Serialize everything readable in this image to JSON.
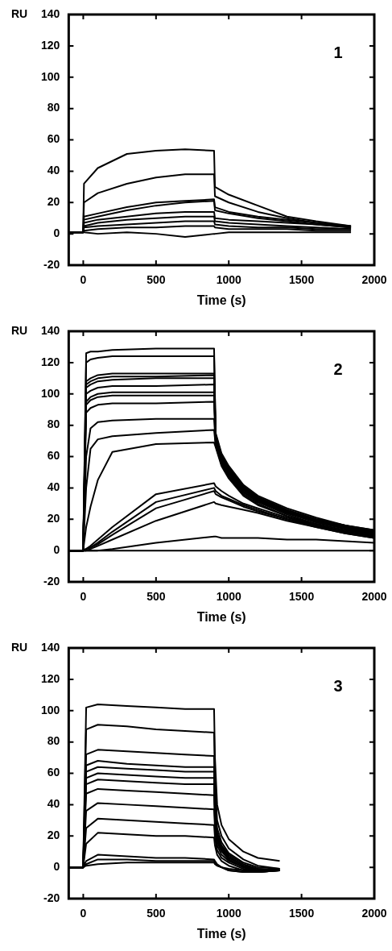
{
  "chart_data": [
    {
      "type": "line",
      "xlabel": "Time (s)",
      "ylabel": "RU",
      "annotations": [
        "1"
      ],
      "marker": "none",
      "xlim": [
        -100,
        2000
      ],
      "xticks": [
        0,
        500,
        1000,
        1500,
        2000
      ],
      "ylim": [
        -20,
        140
      ],
      "yticks": [
        -20,
        0,
        20,
        40,
        60,
        80,
        100,
        120,
        140
      ],
      "x": [
        -100,
        -1,
        5,
        100,
        300,
        500,
        700,
        899,
        905,
        1000,
        1200,
        1400,
        1600,
        1840
      ],
      "series": [
        {
          "color": "#000000",
          "values": [
            1,
            1,
            32,
            42,
            51,
            53,
            54,
            53,
            30,
            25,
            18,
            11,
            8,
            5
          ]
        },
        {
          "color": "#000000",
          "values": [
            1,
            1,
            20,
            26,
            32,
            36,
            38,
            38,
            24,
            20,
            14,
            10,
            7,
            5
          ]
        },
        {
          "color": "#000000",
          "values": [
            1,
            1,
            11,
            13,
            17,
            20,
            21,
            22,
            17,
            14,
            11,
            9,
            7,
            4
          ]
        },
        {
          "color": "#000000",
          "values": [
            1,
            1,
            9,
            11,
            15,
            18,
            20,
            21,
            15,
            13,
            10,
            8,
            6,
            4
          ]
        },
        {
          "color": "#000000",
          "values": [
            1,
            1,
            7,
            9,
            11,
            13,
            14,
            14,
            10,
            9,
            8,
            7,
            6,
            4
          ]
        },
        {
          "color": "#000000",
          "values": [
            1,
            1,
            5,
            7,
            9,
            10,
            11,
            11,
            8,
            7,
            6,
            5,
            4,
            3
          ]
        },
        {
          "color": "#000000",
          "values": [
            1,
            1,
            4,
            5,
            6,
            7,
            8,
            8,
            6,
            5,
            4,
            4,
            3,
            3
          ]
        },
        {
          "color": "#000000",
          "values": [
            1,
            1,
            2,
            3,
            4,
            4,
            5,
            5,
            4,
            3,
            3,
            3,
            2,
            2
          ]
        },
        {
          "color": "#000000",
          "values": [
            1,
            1,
            1,
            0,
            1,
            0,
            -2,
            0,
            0,
            1,
            1,
            1,
            1,
            1
          ]
        }
      ]
    },
    {
      "type": "line",
      "xlabel": "Time (s)",
      "ylabel": "RU",
      "annotations": [
        "2"
      ],
      "marker": "none",
      "xlim": [
        -100,
        2000
      ],
      "xticks": [
        0,
        500,
        1000,
        1500,
        2000
      ],
      "ylim": [
        -20,
        140
      ],
      "yticks": [
        -20,
        0,
        20,
        40,
        60,
        80,
        100,
        120,
        140
      ],
      "x": [
        -100,
        -1,
        20,
        50,
        100,
        200,
        500,
        899,
        910,
        950,
        1000,
        1100,
        1200,
        1400,
        1600,
        1800,
        2000
      ],
      "series": [
        {
          "color": "#000000",
          "values": [
            0,
            0,
            126,
            127,
            127,
            128,
            129,
            129,
            75,
            62,
            54,
            42,
            35,
            27,
            21,
            16,
            13
          ]
        },
        {
          "color": "#000000",
          "values": [
            0,
            0,
            120,
            122,
            123,
            124,
            124,
            124,
            74,
            61,
            53,
            41,
            34,
            26,
            20,
            16,
            13
          ]
        },
        {
          "color": "#000000",
          "values": [
            0,
            0,
            108,
            110,
            112,
            113,
            113,
            113,
            73,
            60,
            52,
            41,
            34,
            26,
            20,
            16,
            12
          ]
        },
        {
          "color": "#000000",
          "values": [
            0,
            0,
            106,
            108,
            110,
            111,
            111,
            112,
            72,
            60,
            52,
            40,
            33,
            25,
            19,
            15,
            12
          ]
        },
        {
          "color": "#000000",
          "values": [
            0,
            0,
            104,
            106,
            108,
            109,
            110,
            110,
            72,
            59,
            51,
            40,
            33,
            25,
            19,
            15,
            12
          ]
        },
        {
          "color": "#000000",
          "values": [
            0,
            0,
            100,
            102,
            104,
            105,
            105,
            106,
            71,
            59,
            51,
            40,
            33,
            25,
            19,
            15,
            11
          ]
        },
        {
          "color": "#000000",
          "values": [
            0,
            0,
            95,
            98,
            100,
            101,
            101,
            101,
            70,
            58,
            50,
            39,
            32,
            24,
            19,
            15,
            11
          ]
        },
        {
          "color": "#000000",
          "values": [
            0,
            0,
            93,
            96,
            98,
            99,
            99,
            99,
            70,
            58,
            50,
            39,
            32,
            24,
            18,
            14,
            11
          ]
        },
        {
          "color": "#000000",
          "values": [
            0,
            0,
            88,
            91,
            93,
            94,
            94,
            95,
            69,
            57,
            49,
            38,
            31,
            24,
            18,
            14,
            10
          ]
        },
        {
          "color": "#000000",
          "values": [
            0,
            0,
            60,
            78,
            82,
            83,
            84,
            84,
            68,
            56,
            48,
            37,
            31,
            23,
            17,
            13,
            10
          ]
        },
        {
          "color": "#000000",
          "values": [
            0,
            0,
            40,
            65,
            71,
            73,
            75,
            77,
            67,
            55,
            47,
            36,
            30,
            22,
            17,
            13,
            10
          ]
        },
        {
          "color": "#000000",
          "values": [
            0,
            0,
            15,
            28,
            45,
            63,
            68,
            69,
            66,
            54,
            46,
            35,
            29,
            22,
            16,
            12,
            9
          ]
        },
        {
          "color": "#000000",
          "values": [
            0,
            0,
            1,
            3,
            7,
            15,
            36,
            43,
            41,
            38,
            35,
            30,
            27,
            21,
            16,
            12,
            9
          ]
        },
        {
          "color": "#000000",
          "values": [
            0,
            0,
            1,
            2,
            5,
            12,
            31,
            40,
            38,
            35,
            33,
            29,
            26,
            20,
            16,
            12,
            9
          ]
        },
        {
          "color": "#000000",
          "values": [
            0,
            0,
            1,
            2,
            4,
            10,
            27,
            38,
            36,
            34,
            32,
            28,
            25,
            20,
            15,
            11,
            8
          ]
        },
        {
          "color": "#000000",
          "values": [
            0,
            0,
            0,
            1,
            3,
            7,
            19,
            31,
            30,
            29,
            28,
            26,
            24,
            19,
            15,
            11,
            8
          ]
        },
        {
          "color": "#000000",
          "values": [
            0,
            0,
            0,
            0,
            0,
            1,
            5,
            9,
            9,
            8,
            8,
            8,
            8,
            7,
            7,
            6,
            5
          ]
        },
        {
          "color": "#000000",
          "values": [
            0,
            0,
            0,
            0,
            0,
            0,
            0,
            0,
            0,
            0,
            0,
            0,
            0,
            0,
            0,
            0,
            0
          ]
        }
      ]
    },
    {
      "type": "line",
      "xlabel": "Time (s)",
      "ylabel": "RU",
      "annotations": [
        "3"
      ],
      "marker": "none",
      "xlim": [
        -100,
        2000
      ],
      "xticks": [
        0,
        500,
        1000,
        1500,
        2000
      ],
      "ylim": [
        -20,
        140
      ],
      "yticks": [
        -20,
        0,
        20,
        40,
        60,
        80,
        100,
        120,
        140
      ],
      "x": [
        -100,
        -1,
        20,
        100,
        300,
        500,
        700,
        899,
        905,
        920,
        950,
        1000,
        1100,
        1200,
        1350
      ],
      "series": [
        {
          "color": "#000000",
          "values": [
            0,
            0,
            102,
            104,
            103,
            102,
            101,
            101,
            70,
            40,
            27,
            18,
            10,
            6,
            4
          ]
        },
        {
          "color": "#000000",
          "values": [
            0,
            0,
            88,
            91,
            90,
            88,
            87,
            86,
            55,
            30,
            20,
            12,
            5,
            1,
            -1
          ]
        },
        {
          "color": "#000000",
          "values": [
            0,
            0,
            72,
            75,
            74,
            73,
            72,
            71,
            45,
            25,
            16,
            9,
            3,
            0,
            -1
          ]
        },
        {
          "color": "#000000",
          "values": [
            0,
            0,
            65,
            68,
            66,
            65,
            64,
            64,
            40,
            22,
            14,
            8,
            2,
            -1,
            -2
          ]
        },
        {
          "color": "#000000",
          "values": [
            0,
            0,
            61,
            64,
            63,
            62,
            61,
            61,
            38,
            21,
            13,
            7,
            1,
            -1,
            -2
          ]
        },
        {
          "color": "#000000",
          "values": [
            0,
            0,
            57,
            60,
            59,
            58,
            57,
            57,
            36,
            20,
            12,
            6,
            1,
            -2,
            -2
          ]
        },
        {
          "color": "#000000",
          "values": [
            0,
            0,
            53,
            56,
            55,
            54,
            53,
            53,
            33,
            18,
            11,
            5,
            0,
            -2,
            -2
          ]
        },
        {
          "color": "#000000",
          "values": [
            0,
            0,
            47,
            50,
            49,
            48,
            47,
            46,
            30,
            16,
            10,
            5,
            0,
            -2,
            -2
          ]
        },
        {
          "color": "#000000",
          "values": [
            0,
            0,
            36,
            41,
            40,
            39,
            38,
            37,
            25,
            14,
            8,
            4,
            0,
            -3,
            -2
          ]
        },
        {
          "color": "#000000",
          "values": [
            0,
            0,
            25,
            31,
            30,
            29,
            28,
            27,
            19,
            11,
            6,
            3,
            -1,
            -3,
            -2
          ]
        },
        {
          "color": "#000000",
          "values": [
            0,
            0,
            15,
            22,
            21,
            20,
            20,
            19,
            14,
            8,
            4,
            1,
            -2,
            -3,
            -2
          ]
        },
        {
          "color": "#000000",
          "values": [
            0,
            0,
            4,
            8,
            7,
            6,
            6,
            5,
            4,
            2,
            0,
            -2,
            -3,
            -3,
            -2
          ]
        },
        {
          "color": "#000000",
          "values": [
            0,
            0,
            2,
            5,
            5,
            4,
            4,
            4,
            3,
            1,
            0,
            -2,
            -3,
            -2,
            -2
          ]
        },
        {
          "color": "#000000",
          "values": [
            0,
            0,
            1,
            2,
            3,
            3,
            3,
            3,
            2,
            1,
            0,
            -1,
            -2,
            -2,
            -1
          ]
        }
      ]
    }
  ]
}
